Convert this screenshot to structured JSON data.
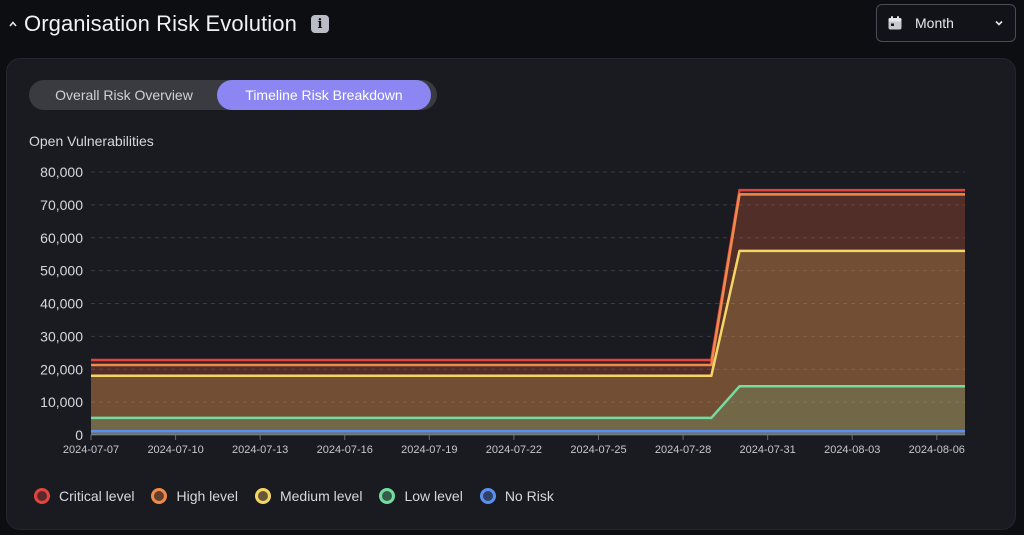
{
  "header": {
    "title": "Organisation Risk Evolution",
    "info_glyph": "i"
  },
  "period_select": {
    "value": "Month"
  },
  "toggle": {
    "tabs": [
      {
        "label": "Overall Risk Overview"
      },
      {
        "label": "Timeline Risk Breakdown"
      }
    ],
    "active_index": 1
  },
  "chart_data": {
    "type": "area",
    "ylabel": "Open Vulnerabilities",
    "ylim": [
      0,
      80000
    ],
    "yticks": [
      0,
      10000,
      20000,
      30000,
      40000,
      50000,
      60000,
      70000,
      80000
    ],
    "ytick_labels": [
      "0",
      "10,000",
      "20,000",
      "30,000",
      "40,000",
      "50,000",
      "60,000",
      "70,000",
      "80,000"
    ],
    "xtick_labels": [
      "2024-07-07",
      "2024-07-10",
      "2024-07-13",
      "2024-07-16",
      "2024-07-19",
      "2024-07-22",
      "2024-07-25",
      "2024-07-28",
      "2024-07-31",
      "2024-08-03",
      "2024-08-06"
    ],
    "x": [
      "2024-07-07",
      "2024-07-08",
      "2024-07-09",
      "2024-07-10",
      "2024-07-11",
      "2024-07-12",
      "2024-07-13",
      "2024-07-14",
      "2024-07-15",
      "2024-07-16",
      "2024-07-17",
      "2024-07-18",
      "2024-07-19",
      "2024-07-20",
      "2024-07-21",
      "2024-07-22",
      "2024-07-23",
      "2024-07-24",
      "2024-07-25",
      "2024-07-26",
      "2024-07-27",
      "2024-07-28",
      "2024-07-29",
      "2024-07-30",
      "2024-07-31",
      "2024-08-01",
      "2024-08-02",
      "2024-08-03",
      "2024-08-04",
      "2024-08-05",
      "2024-08-06",
      "2024-08-07"
    ],
    "grid": true,
    "legend_position": "bottom-left",
    "series": [
      {
        "name": "Critical level",
        "color": "#e0453f",
        "values": [
          22800,
          22800,
          22800,
          22800,
          22800,
          22800,
          22800,
          22800,
          22800,
          22800,
          22800,
          22800,
          22800,
          22800,
          22800,
          22800,
          22800,
          22800,
          22800,
          22800,
          22800,
          22800,
          22800,
          74500,
          74500,
          74500,
          74500,
          74500,
          74500,
          74500,
          74500,
          74500
        ]
      },
      {
        "name": "High level",
        "color": "#f08a4b",
        "values": [
          21300,
          21300,
          21300,
          21300,
          21300,
          21300,
          21300,
          21300,
          21300,
          21300,
          21300,
          21300,
          21300,
          21300,
          21300,
          21300,
          21300,
          21300,
          21300,
          21300,
          21300,
          21300,
          21300,
          73200,
          73200,
          73200,
          73200,
          73200,
          73200,
          73200,
          73200,
          73200
        ]
      },
      {
        "name": "Medium level",
        "color": "#f5d565",
        "values": [
          18000,
          18000,
          18000,
          18000,
          18000,
          18000,
          18000,
          18000,
          18000,
          18000,
          18000,
          18000,
          18000,
          18000,
          18000,
          18000,
          18000,
          18000,
          18000,
          18000,
          18000,
          18000,
          18000,
          56000,
          56000,
          56000,
          56000,
          56000,
          56000,
          56000,
          56000,
          56000
        ]
      },
      {
        "name": "Low level",
        "color": "#74dca0",
        "values": [
          5200,
          5200,
          5200,
          5200,
          5200,
          5200,
          5200,
          5200,
          5200,
          5200,
          5200,
          5200,
          5200,
          5200,
          5200,
          5200,
          5200,
          5200,
          5200,
          5200,
          5200,
          5200,
          5200,
          14800,
          14800,
          14800,
          14800,
          14800,
          14800,
          14800,
          14800,
          14800
        ]
      },
      {
        "name": "No Risk",
        "color": "#5a8ff0",
        "values": [
          1200,
          1200,
          1200,
          1200,
          1200,
          1200,
          1200,
          1200,
          1200,
          1200,
          1200,
          1200,
          1200,
          1200,
          1200,
          1200,
          1200,
          1200,
          1200,
          1200,
          1200,
          1200,
          1200,
          1200,
          1200,
          1200,
          1200,
          1200,
          1200,
          1200,
          1200,
          1200
        ]
      }
    ]
  },
  "colors": {
    "accent": "#8b86f2",
    "card_bg": "#1a1b20",
    "page_bg": "#0d0e12"
  },
  "icons": {
    "collapse": "chevron-up-icon",
    "info": "info-icon",
    "calendar": "calendar-icon",
    "dropdown": "chevron-down-icon"
  }
}
